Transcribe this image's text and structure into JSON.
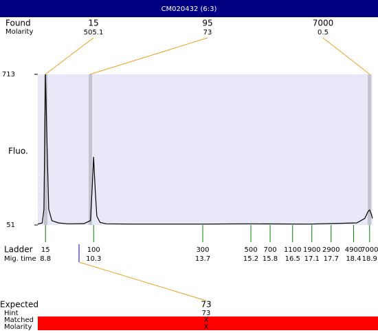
{
  "title": "CM020432 (6:3)",
  "found": {
    "label": "Found",
    "sub_label": "Molarity",
    "peaks": [
      {
        "size": 15,
        "molarity": 505.1
      },
      {
        "size": 95,
        "molarity": 73
      },
      {
        "size": 7000,
        "molarity": 0.5
      }
    ]
  },
  "chart_data": {
    "type": "line",
    "y_label": "Fluo.",
    "color": "#000000",
    "x": [
      8.56,
      8.7,
      8.75,
      8.8,
      8.85,
      8.9,
      9.0,
      9.2,
      9.5,
      10.0,
      10.2,
      10.25,
      10.3,
      10.35,
      10.4,
      10.5,
      10.7,
      11.5,
      13.7,
      15.0,
      17.0,
      18.5,
      18.75,
      18.85,
      18.9,
      18.95,
      18.99
    ],
    "values": [
      55,
      60,
      120,
      713,
      400,
      120,
      70,
      60,
      56,
      57,
      70,
      200,
      350,
      200,
      90,
      62,
      56,
      55,
      55,
      56,
      55,
      60,
      80,
      110,
      117,
      100,
      80
    ],
    "xlim": [
      8.56,
      18.99
    ],
    "ylim": [
      51,
      713
    ],
    "yticks": [
      51,
      713
    ]
  },
  "ladder": {
    "label": "Ladder",
    "sub_label": "Mig. time",
    "sizes": [
      15,
      100,
      300,
      500,
      700,
      1100,
      1900,
      2900,
      4900,
      7000
    ],
    "mig_times": [
      8.8,
      10.3,
      13.7,
      15.2,
      15.8,
      16.5,
      17.1,
      17.7,
      18.4,
      18.9
    ]
  },
  "expected": {
    "label": "Expected",
    "value": 73,
    "hint_label": "Hint",
    "hint": 73,
    "matched_label": "Matched",
    "matched": "X",
    "molarity_label": "Molarity",
    "molarity": "X"
  }
}
